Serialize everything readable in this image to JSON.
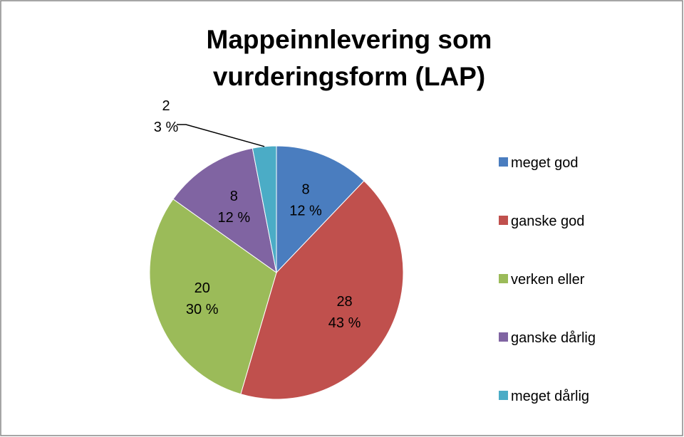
{
  "chart_data": {
    "type": "pie",
    "title": "Mappeinnlevering som vurderingsform (LAP)",
    "categories": [
      "meget god",
      "ganske god",
      "verken eller",
      "ganske dårlig",
      "meget dårlig"
    ],
    "values": [
      8,
      28,
      20,
      8,
      2
    ],
    "percent_labels": [
      "12 %",
      "43 %",
      "30 %",
      "12 %",
      "3 %"
    ],
    "colors": [
      "#4a7dbf",
      "#c0504d",
      "#9bbb59",
      "#8064a2",
      "#4bacc6"
    ],
    "legend": "right"
  }
}
